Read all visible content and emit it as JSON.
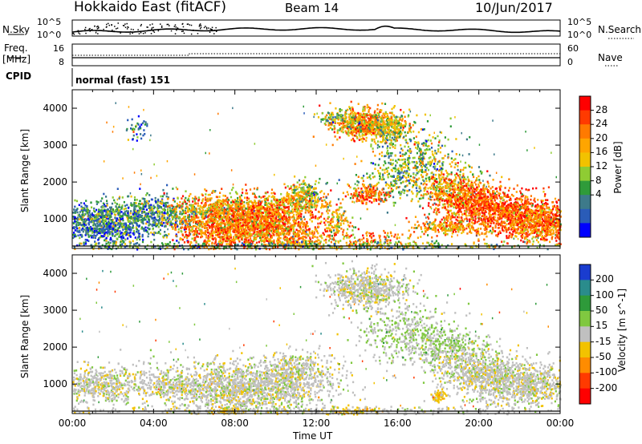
{
  "header": {
    "title": "Hokkaido East (fitACF)",
    "beam": "Beam 14",
    "date": "10/Jun/2017"
  },
  "top_panels": {
    "nsky_label": "N.Sky",
    "nsearch_label": "N.Search",
    "nsky_ticks": [
      "10^5",
      "10^0"
    ],
    "nsearch_ticks": [
      "10^5",
      "10^0"
    ],
    "freq_label": "Freq.",
    "freq_unit": "[MHz]",
    "freq_ticks": [
      "16",
      "8"
    ],
    "nave_label": "Nave",
    "nave_ticks": [
      "60",
      "0"
    ],
    "cpid_label": "CPID",
    "cpid_value": "normal (fast) 151"
  },
  "chart_data": [
    {
      "type": "heatmap",
      "name": "power",
      "ylabel": "Slant Range [km]",
      "yticks": [
        1000,
        2000,
        3000,
        4000
      ],
      "ylim": [
        200,
        4500
      ],
      "colorbar_label": "Power [dB]",
      "colorbar_ticks": [
        "28",
        "24",
        "20",
        "16",
        "12",
        "8",
        "4"
      ],
      "colorbar_colors": [
        "#ff0000",
        "#ff3a00",
        "#ff7a00",
        "#ffa500",
        "#f2c200",
        "#8fcc33",
        "#2f9b3a",
        "#3d7a8a",
        "#2a5cb8",
        "#0000ff"
      ],
      "colorbar_range": [
        0,
        32
      ],
      "blobs": [
        {
          "t": 1.2,
          "r": 1050,
          "st": 1.3,
          "sr": 220,
          "n": 600,
          "v": 10
        },
        {
          "t": 1.5,
          "r": 700,
          "st": 1.5,
          "sr": 200,
          "n": 450,
          "v": 7
        },
        {
          "t": 3.8,
          "r": 1350,
          "st": 0.8,
          "sr": 200,
          "n": 150,
          "v": 9
        },
        {
          "t": 4.5,
          "r": 1050,
          "st": 1.2,
          "sr": 250,
          "n": 350,
          "v": 10
        },
        {
          "t": 3.2,
          "r": 3500,
          "st": 0.25,
          "sr": 200,
          "n": 40,
          "v": 8
        },
        {
          "t": 7.2,
          "r": 850,
          "st": 1.0,
          "sr": 350,
          "n": 900,
          "v": 24
        },
        {
          "t": 7.5,
          "r": 1350,
          "st": 1.4,
          "sr": 200,
          "n": 350,
          "v": 18
        },
        {
          "t": 9.5,
          "r": 1050,
          "st": 1.3,
          "sr": 300,
          "n": 900,
          "v": 24
        },
        {
          "t": 10.3,
          "r": 600,
          "st": 1.2,
          "sr": 250,
          "n": 500,
          "v": 22
        },
        {
          "t": 11.2,
          "r": 1500,
          "st": 0.6,
          "sr": 150,
          "n": 200,
          "v": 20
        },
        {
          "t": 11.5,
          "r": 1800,
          "st": 0.4,
          "sr": 150,
          "n": 120,
          "v": 14
        },
        {
          "t": 13.0,
          "r": 1000,
          "st": 0.3,
          "sr": 300,
          "n": 100,
          "v": 18
        },
        {
          "t": 14.5,
          "r": 450,
          "st": 1.2,
          "sr": 150,
          "n": 150,
          "v": 22
        },
        {
          "t": 14.5,
          "r": 1700,
          "st": 0.5,
          "sr": 120,
          "n": 180,
          "v": 24
        },
        {
          "t": 14.3,
          "r": 3600,
          "st": 0.8,
          "sr": 200,
          "n": 550,
          "v": 22
        },
        {
          "t": 15.6,
          "r": 3500,
          "st": 0.5,
          "sr": 220,
          "n": 300,
          "v": 16
        },
        {
          "t": 13.2,
          "r": 3700,
          "st": 0.5,
          "sr": 150,
          "n": 120,
          "v": 14
        },
        {
          "t": 16.0,
          "r": 2100,
          "st": 1.0,
          "sr": 300,
          "n": 250,
          "v": 14
        },
        {
          "t": 17.0,
          "r": 2700,
          "st": 1.0,
          "sr": 400,
          "n": 300,
          "v": 13
        },
        {
          "t": 18.5,
          "r": 1900,
          "st": 0.8,
          "sr": 300,
          "n": 250,
          "v": 18
        },
        {
          "t": 19.5,
          "r": 1600,
          "st": 1.0,
          "sr": 250,
          "n": 600,
          "v": 24
        },
        {
          "t": 21.2,
          "r": 1150,
          "st": 1.4,
          "sr": 280,
          "n": 1000,
          "v": 26
        },
        {
          "t": 23.0,
          "r": 900,
          "st": 0.9,
          "sr": 250,
          "n": 600,
          "v": 24
        },
        {
          "t": 18.3,
          "r": 800,
          "st": 0.7,
          "sr": 100,
          "n": 200,
          "v": 20
        },
        {
          "t": 12.0,
          "r": 300,
          "st": 7.0,
          "sr": 60,
          "n": 400,
          "v": 12
        }
      ]
    },
    {
      "type": "heatmap",
      "name": "velocity",
      "ylabel": "Slant Range [km]",
      "xlabel": "Time UT",
      "xticks": [
        "00:00",
        "04:00",
        "08:00",
        "12:00",
        "16:00",
        "20:00",
        "00:00"
      ],
      "xlim": [
        0,
        24
      ],
      "yticks": [
        1000,
        2000,
        3000,
        4000
      ],
      "ylim": [
        200,
        4500
      ],
      "colorbar_label": "Velocity [m s^-1]",
      "colorbar_ticks": [
        "200",
        "100",
        "50",
        "15",
        "-15",
        "-50",
        "-100",
        "-200"
      ],
      "colorbar_colors": [
        "#1a3ccf",
        "#2a8c8c",
        "#2e9a3a",
        "#80c840",
        "#c0c0c0",
        "#f2c200",
        "#ff8c00",
        "#ff3a00",
        "#ff0000"
      ],
      "colorbar_range": [
        -250,
        250
      ],
      "blobs": [
        {
          "t": 1.2,
          "r": 1000,
          "st": 1.3,
          "sr": 250,
          "n": 550,
          "v": 0
        },
        {
          "t": 4.5,
          "r": 1000,
          "st": 1.2,
          "sr": 250,
          "n": 320,
          "v": 0
        },
        {
          "t": 7.5,
          "r": 900,
          "st": 1.3,
          "sr": 350,
          "n": 800,
          "v": 0
        },
        {
          "t": 10.0,
          "r": 1000,
          "st": 1.5,
          "sr": 300,
          "n": 800,
          "v": 0
        },
        {
          "t": 11.0,
          "r": 1500,
          "st": 1.0,
          "sr": 200,
          "n": 250,
          "v": 0
        },
        {
          "t": 14.5,
          "r": 3600,
          "st": 1.0,
          "sr": 250,
          "n": 650,
          "v": 0
        },
        {
          "t": 16.5,
          "r": 2400,
          "st": 1.2,
          "sr": 400,
          "n": 450,
          "v": 20
        },
        {
          "t": 18.5,
          "r": 2000,
          "st": 1.0,
          "sr": 250,
          "n": 300,
          "v": 30
        },
        {
          "t": 20.0,
          "r": 1400,
          "st": 1.2,
          "sr": 300,
          "n": 600,
          "v": 0
        },
        {
          "t": 22.0,
          "r": 1000,
          "st": 1.4,
          "sr": 300,
          "n": 900,
          "v": 0
        },
        {
          "t": 18.0,
          "r": 700,
          "st": 0.2,
          "sr": 80,
          "n": 60,
          "v": -50
        },
        {
          "t": 7.5,
          "r": 300,
          "st": 0.5,
          "sr": 60,
          "n": 60,
          "v": -60
        },
        {
          "t": 14.0,
          "r": 300,
          "st": 0.6,
          "sr": 60,
          "n": 60,
          "v": -60
        },
        {
          "t": 12.0,
          "r": 300,
          "st": 7.0,
          "sr": 60,
          "n": 350,
          "v": 0
        }
      ]
    }
  ]
}
